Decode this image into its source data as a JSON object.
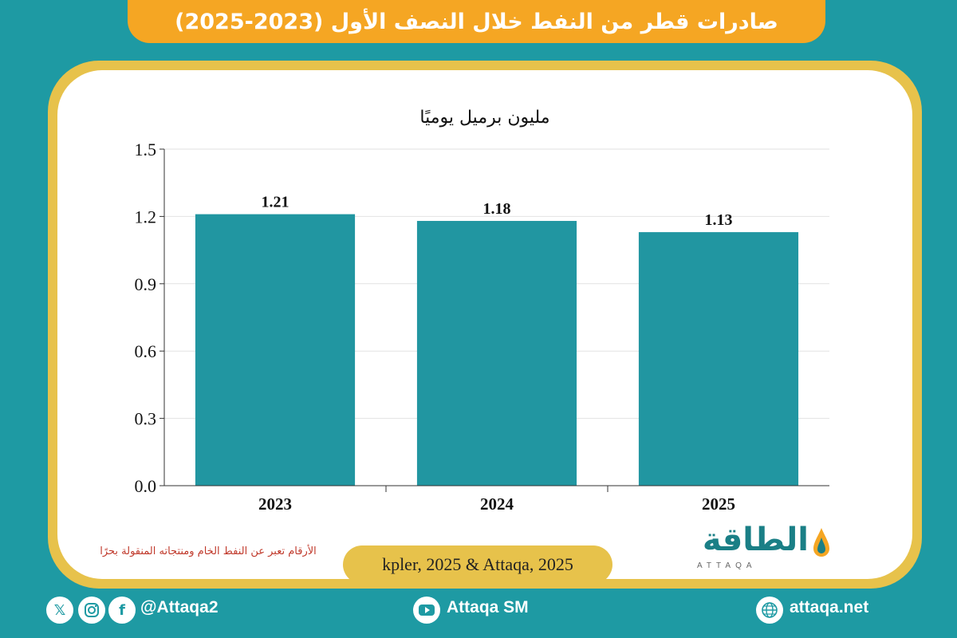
{
  "header": {
    "title": "صادرات قطر من النفط خلال النصف الأول (2023-2025)"
  },
  "chart_data": {
    "type": "bar",
    "title": "صادرات قطر من النفط خلال النصف الأول (2023-2025)",
    "ylabel": "مليون برميل يوميًا",
    "categories": [
      "2023",
      "2024",
      "2025"
    ],
    "values": [
      1.21,
      1.18,
      1.13
    ],
    "value_labels": [
      "1.21",
      "1.18",
      "1.13"
    ],
    "ylim": [
      0,
      1.5
    ],
    "yticks": [
      "0.0",
      "0.3",
      "0.6",
      "0.9",
      "1.2",
      "1.5"
    ],
    "ytick_values": [
      0,
      0.3,
      0.6,
      0.9,
      1.2,
      1.5
    ],
    "grid": true,
    "bar_color": "#2196a1"
  },
  "note": "الأرقام تعبر عن النفط الخام ومنتجاته المنقولة بحرًا",
  "source": "kpler, 2025 & Attaqa, 2025",
  "logo": {
    "text": "الطاقة",
    "sub": "ATTAQA"
  },
  "footer": {
    "handle": "@Attaqa2",
    "youtube": "Attaqa SM",
    "website": "attaqa.net"
  },
  "colors": {
    "background": "#1e9aa3",
    "banner": "#f5a623",
    "border": "#e7c24b"
  }
}
